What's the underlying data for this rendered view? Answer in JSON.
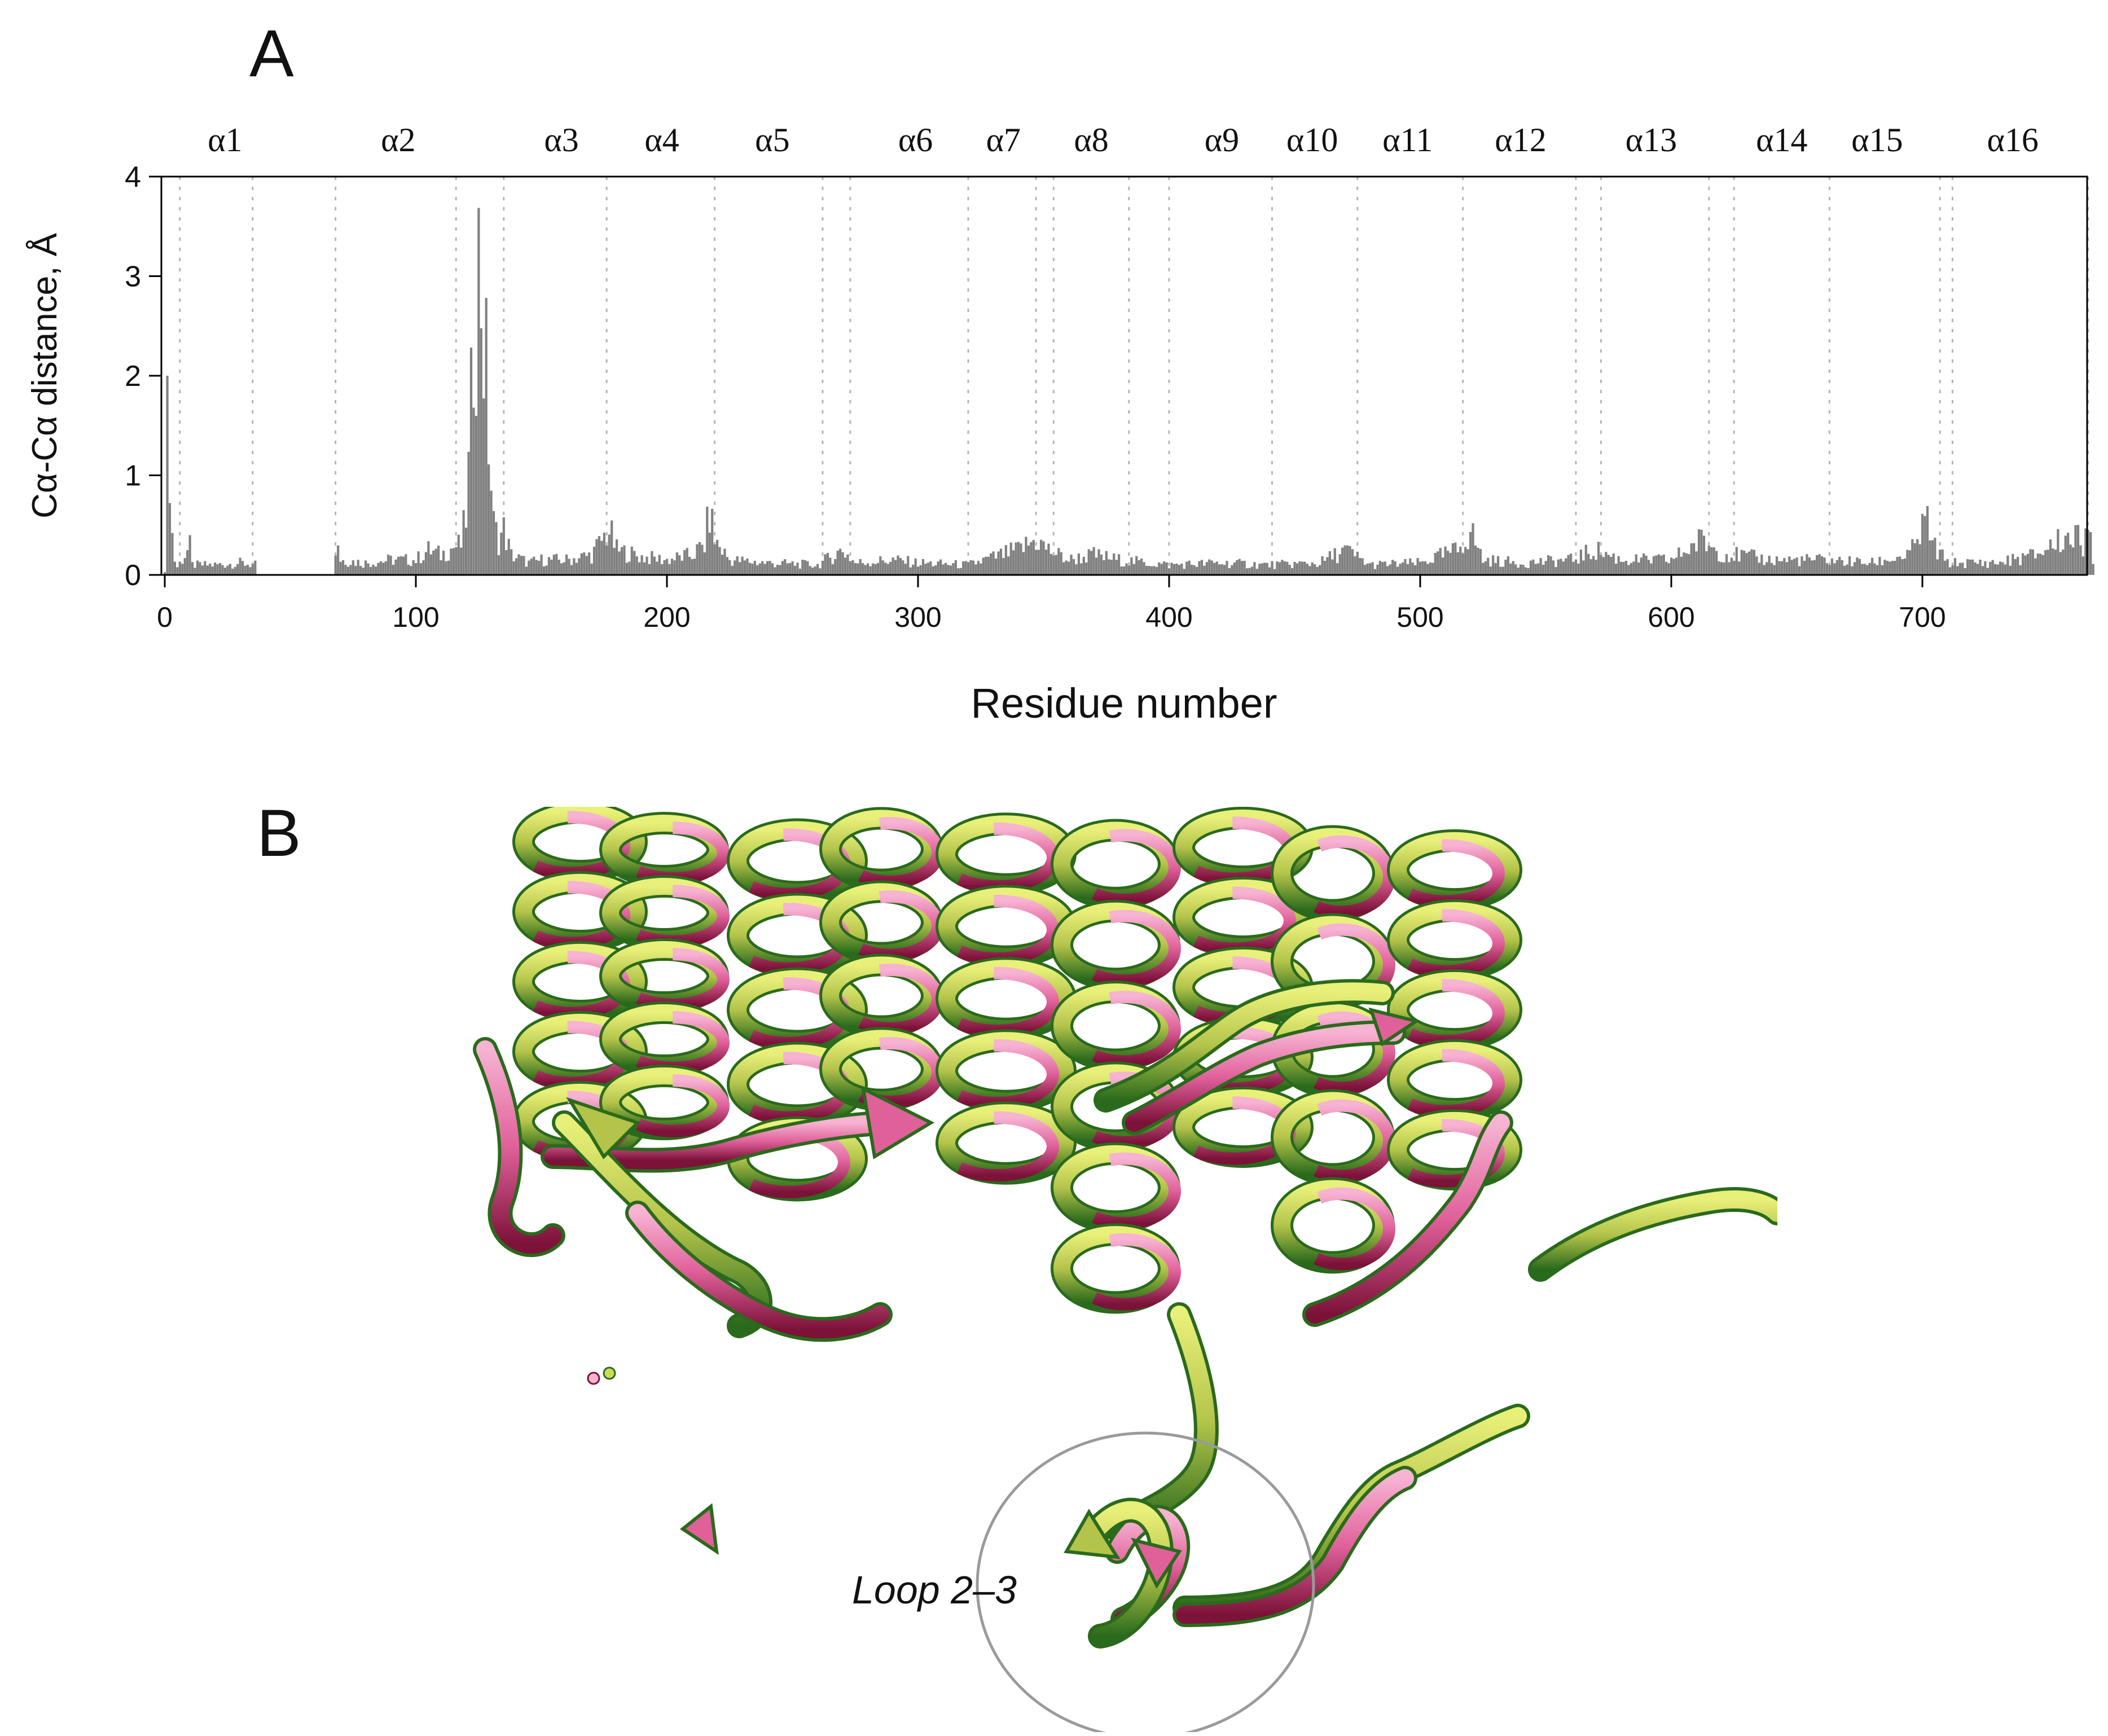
{
  "panel_a": {
    "letter": "A"
  },
  "panel_b": {
    "letter": "B",
    "annotation": "Loop 2–3",
    "colors": {
      "structure_1": "#e0609a",
      "structure_2": "#b4c44a",
      "shade": "#2a6a1c",
      "circle": "#9a9a9a"
    }
  },
  "chart_data": {
    "type": "bar",
    "title": "",
    "xlabel": "Residue number",
    "ylabel": "Cα-Cα distance, Å",
    "xlim": [
      0,
      768
    ],
    "ylim": [
      0,
      4
    ],
    "xticks": [
      0,
      100,
      200,
      300,
      400,
      500,
      600,
      700
    ],
    "yticks": [
      0,
      1,
      2,
      3,
      4
    ],
    "bar_color": "#808080",
    "grid": false,
    "helix_boundaries": [
      6,
      35,
      68,
      116,
      135,
      176,
      219,
      262,
      273,
      320,
      347,
      354,
      384,
      400,
      441,
      475,
      517,
      562,
      572,
      615,
      625,
      663,
      707,
      712,
      766
    ],
    "helix_labels": [
      {
        "label": "α1",
        "center": 24
      },
      {
        "label": "α2",
        "center": 93
      },
      {
        "label": "α3",
        "center": 158
      },
      {
        "label": "α4",
        "center": 198
      },
      {
        "label": "α5",
        "center": 242
      },
      {
        "label": "α6",
        "center": 299
      },
      {
        "label": "α7",
        "center": 334
      },
      {
        "label": "α8",
        "center": 369
      },
      {
        "label": "α9",
        "center": 421
      },
      {
        "label": "α10",
        "center": 457
      },
      {
        "label": "α11",
        "center": 495
      },
      {
        "label": "α12",
        "center": 540
      },
      {
        "label": "α13",
        "center": 592
      },
      {
        "label": "α14",
        "center": 644
      },
      {
        "label": "α15",
        "center": 682
      },
      {
        "label": "α16",
        "center": 736
      }
    ],
    "gaps": [
      [
        37,
        67
      ]
    ],
    "profile": [
      [
        0,
        0.05
      ],
      [
        1,
        1.45
      ],
      [
        2,
        1.2
      ],
      [
        3,
        0.4
      ],
      [
        4,
        0.15
      ],
      [
        5,
        0.08
      ],
      [
        10,
        0.28
      ],
      [
        11,
        0.1
      ],
      [
        20,
        0.1
      ],
      [
        30,
        0.12
      ],
      [
        36,
        0.1
      ],
      [
        67,
        0.08
      ],
      [
        69,
        0.35
      ],
      [
        70,
        0.15
      ],
      [
        80,
        0.12
      ],
      [
        90,
        0.15
      ],
      [
        100,
        0.15
      ],
      [
        105,
        0.25
      ],
      [
        110,
        0.2
      ],
      [
        115,
        0.28
      ],
      [
        118,
        0.3
      ],
      [
        120,
        0.6
      ],
      [
        121,
        1.0
      ],
      [
        122,
        1.6
      ],
      [
        123,
        2.6
      ],
      [
        124,
        2.9
      ],
      [
        125,
        3.05
      ],
      [
        126,
        3.0
      ],
      [
        127,
        2.4
      ],
      [
        128,
        2.0
      ],
      [
        129,
        1.4
      ],
      [
        130,
        0.9
      ],
      [
        131,
        0.5
      ],
      [
        133,
        0.35
      ],
      [
        135,
        0.45
      ],
      [
        138,
        0.2
      ],
      [
        145,
        0.12
      ],
      [
        150,
        0.15
      ],
      [
        160,
        0.15
      ],
      [
        170,
        0.2
      ],
      [
        177,
        0.45
      ],
      [
        180,
        0.25
      ],
      [
        190,
        0.18
      ],
      [
        200,
        0.15
      ],
      [
        210,
        0.2
      ],
      [
        215,
        0.3
      ],
      [
        217,
        0.65
      ],
      [
        219,
        0.35
      ],
      [
        225,
        0.15
      ],
      [
        240,
        0.12
      ],
      [
        260,
        0.1
      ],
      [
        270,
        0.25
      ],
      [
        275,
        0.12
      ],
      [
        290,
        0.15
      ],
      [
        300,
        0.12
      ],
      [
        320,
        0.1
      ],
      [
        340,
        0.25
      ],
      [
        347,
        0.35
      ],
      [
        352,
        0.25
      ],
      [
        360,
        0.15
      ],
      [
        370,
        0.2
      ],
      [
        380,
        0.15
      ],
      [
        400,
        0.1
      ],
      [
        420,
        0.12
      ],
      [
        440,
        0.1
      ],
      [
        460,
        0.12
      ],
      [
        470,
        0.25
      ],
      [
        480,
        0.1
      ],
      [
        500,
        0.12
      ],
      [
        515,
        0.25
      ],
      [
        520,
        0.45
      ],
      [
        525,
        0.15
      ],
      [
        540,
        0.12
      ],
      [
        560,
        0.15
      ],
      [
        570,
        0.25
      ],
      [
        580,
        0.15
      ],
      [
        600,
        0.15
      ],
      [
        612,
        0.35
      ],
      [
        620,
        0.22
      ],
      [
        640,
        0.15
      ],
      [
        660,
        0.15
      ],
      [
        680,
        0.12
      ],
      [
        695,
        0.2
      ],
      [
        700,
        0.45
      ],
      [
        702,
        0.55
      ],
      [
        704,
        0.3
      ],
      [
        710,
        0.12
      ],
      [
        730,
        0.12
      ],
      [
        745,
        0.2
      ],
      [
        755,
        0.35
      ],
      [
        760,
        0.4
      ],
      [
        764,
        0.3
      ],
      [
        766,
        0.8
      ],
      [
        768,
        0.1
      ]
    ]
  }
}
